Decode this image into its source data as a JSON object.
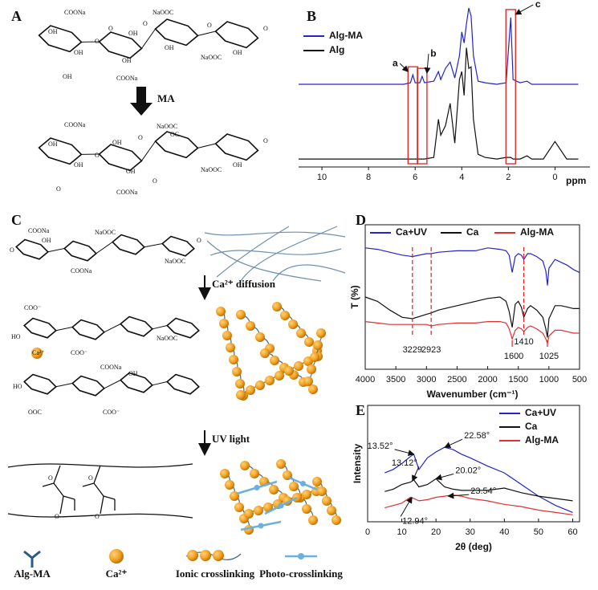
{
  "panel_labels": [
    "A",
    "B",
    "C",
    "D",
    "E"
  ],
  "panel_a": {
    "reagent": "MA",
    "top_labels": [
      "COONa",
      "OH",
      "OH",
      "O",
      "OH",
      "O",
      "OH",
      "OH",
      "COONa",
      "NaOOC",
      "O",
      "OH",
      "NaOOC",
      "OH",
      "O",
      "O"
    ],
    "bottom_labels": [
      "COONa",
      "OH",
      "OH",
      "O",
      "O",
      "OH",
      "NaOOC",
      "OH",
      "COONa",
      "O",
      "OC",
      "NaOOC",
      "OH",
      "O",
      "O"
    ]
  },
  "panel_c": {
    "step1": "Ca²⁺ diffusion",
    "step2": "UV light",
    "top_labels": [
      "COONa",
      "NaOOC",
      "OH",
      "NaOOC",
      "COONa",
      "O",
      "O"
    ],
    "mid_labels": [
      "COO⁻",
      "HO",
      "Ca²⁺",
      "COO⁻",
      "NaOOC",
      "COONa",
      "HO",
      "OOC",
      "COO⁻",
      "OH"
    ],
    "bottom_labels": [
      "O",
      "O",
      "O",
      "O"
    ],
    "legend": [
      "Alg-MA",
      "Ca²⁺",
      "Ionic crosslinking",
      "Photo-crosslinking"
    ]
  },
  "chart_data": [
    {
      "type": "line",
      "xlabel": "ppm",
      "frame": false,
      "legend": "upper left",
      "x": [
        11,
        10,
        9,
        8,
        7,
        6.5,
        6.2,
        6.1,
        6.0,
        5.8,
        5.7,
        5.6,
        5.2,
        5.0,
        4.9,
        4.7,
        4.5,
        4.3,
        4.1,
        4.0,
        3.9,
        3.8,
        3.7,
        3.6,
        3.5,
        3.3,
        3.0,
        2.5,
        2.1,
        1.9,
        1.8,
        1.5,
        1.2,
        1.0,
        0.5,
        0.0,
        -0.5,
        -1
      ],
      "xlim": [
        11,
        -1.5
      ],
      "xticks": [
        10,
        8,
        6,
        4,
        2,
        0
      ],
      "ylim": [
        0,
        100
      ],
      "series": [
        {
          "name": "Alg-MA",
          "color": "#2424c8",
          "values": [
            52,
            52,
            52,
            52,
            52,
            52,
            53,
            58,
            53,
            53,
            57,
            53,
            54,
            60,
            55,
            62,
            66,
            56,
            70,
            85,
            78,
            90,
            100,
            95,
            70,
            54,
            53,
            52,
            53,
            94,
            55,
            53,
            54,
            52,
            52,
            52,
            52,
            52
          ]
        },
        {
          "name": "Alg",
          "color": "#111111",
          "values": [
            5,
            5,
            5,
            5,
            5,
            5,
            5,
            5,
            5,
            5,
            5,
            5,
            6,
            30,
            20,
            26,
            40,
            15,
            55,
            60,
            45,
            75,
            62,
            63,
            30,
            8,
            6,
            5,
            6,
            6,
            5,
            5,
            7,
            5,
            5,
            16,
            5,
            5
          ]
        }
      ],
      "annotations": [
        {
          "text": "a",
          "x": 6.1
        },
        {
          "text": "b",
          "x": 5.7
        },
        {
          "text": "c",
          "x": 1.9
        }
      ],
      "highlight_color": "#e02020"
    },
    {
      "type": "line",
      "xlabel": "Wavenumber (cm⁻¹)",
      "ylabel": "T (%)",
      "frame": true,
      "legend": "top",
      "x": [
        4000,
        3800,
        3600,
        3400,
        3229,
        3000,
        2923,
        2800,
        2500,
        2200,
        2000,
        1800,
        1700,
        1650,
        1600,
        1550,
        1500,
        1450,
        1410,
        1350,
        1300,
        1200,
        1100,
        1050,
        1025,
        1000,
        900,
        800,
        700,
        600,
        500
      ],
      "xlim": [
        4000,
        500
      ],
      "xticks": [
        4000,
        3500,
        3000,
        2500,
        2000,
        1500,
        1000,
        500
      ],
      "ylim": [
        0,
        100
      ],
      "series": [
        {
          "name": "Ca+UV",
          "color": "#2424c8",
          "values": [
            84,
            83,
            81,
            79,
            78,
            80,
            80,
            81,
            82,
            82,
            84,
            83,
            82,
            79,
            67,
            78,
            80,
            79,
            76,
            80,
            80,
            78,
            75,
            68,
            58,
            70,
            76,
            74,
            72,
            69,
            67
          ]
        },
        {
          "name": "Ca",
          "color": "#111111",
          "values": [
            50,
            47,
            41,
            36,
            35,
            38,
            39,
            41,
            44,
            47,
            49,
            50,
            47,
            40,
            29,
            45,
            47,
            43,
            36,
            42,
            44,
            41,
            36,
            28,
            22,
            35,
            44,
            44,
            43,
            42,
            42
          ]
        },
        {
          "name": "Alg-MA",
          "color": "#e03030",
          "values": [
            33,
            32,
            31,
            31,
            31,
            31,
            30,
            31,
            32,
            32,
            33,
            33,
            32,
            28,
            21,
            27,
            29,
            28,
            26,
            29,
            30,
            28,
            25,
            21,
            18,
            23,
            27,
            27,
            26,
            25,
            25
          ]
        }
      ],
      "annotations": [
        {
          "text": "3229",
          "x": 3229,
          "dashed": true
        },
        {
          "text": "2923",
          "x": 2923,
          "dashed": true
        },
        {
          "text": "1600",
          "x": 1600,
          "dashed": false
        },
        {
          "text": "1410",
          "x": 1410,
          "dashed": true
        },
        {
          "text": "1025",
          "x": 1025,
          "dashed": false
        }
      ],
      "highlight_color": "#e02020"
    },
    {
      "type": "line",
      "xlabel": "2θ (deg)",
      "ylabel": "Intensity",
      "frame": true,
      "legend": "upper right",
      "x": [
        5,
        7.5,
        10,
        12.5,
        13.5,
        15,
        17.5,
        20,
        22.5,
        25,
        27.5,
        30,
        35,
        40,
        45,
        50,
        55,
        60
      ],
      "xlim": [
        0,
        62
      ],
      "xticks": [
        0,
        10,
        20,
        30,
        40,
        50,
        60
      ],
      "ylim": [
        0,
        100
      ],
      "series": [
        {
          "name": "Ca+UV",
          "color": "#2424c8",
          "values": [
            42,
            45,
            50,
            56,
            58,
            45,
            55,
            60,
            64,
            62,
            58,
            55,
            48,
            42,
            32,
            22,
            14,
            8
          ]
        },
        {
          "name": "Ca",
          "color": "#111111",
          "values": [
            26,
            28,
            32,
            34,
            36,
            30,
            32,
            37,
            30,
            28,
            27,
            27,
            27,
            29,
            25,
            22,
            20,
            18
          ]
        },
        {
          "name": "Alg-MA",
          "color": "#e03030",
          "values": [
            12,
            14,
            16,
            21,
            20,
            18,
            19,
            21,
            22,
            23,
            22,
            20,
            18,
            15,
            13,
            10,
            8,
            6
          ]
        }
      ],
      "annotations": [
        {
          "text": "13.52°",
          "x": 13.52,
          "y": 58
        },
        {
          "text": "22.58°",
          "x": 22.58,
          "y": 64
        },
        {
          "text": "13.12°",
          "x": 13.12,
          "y": 35
        },
        {
          "text": "20.02°",
          "x": 20.02,
          "y": 37
        },
        {
          "text": "12.94°",
          "x": 12.94,
          "y": 21
        },
        {
          "text": "23.54°",
          "x": 23.54,
          "y": 22
        }
      ]
    }
  ]
}
